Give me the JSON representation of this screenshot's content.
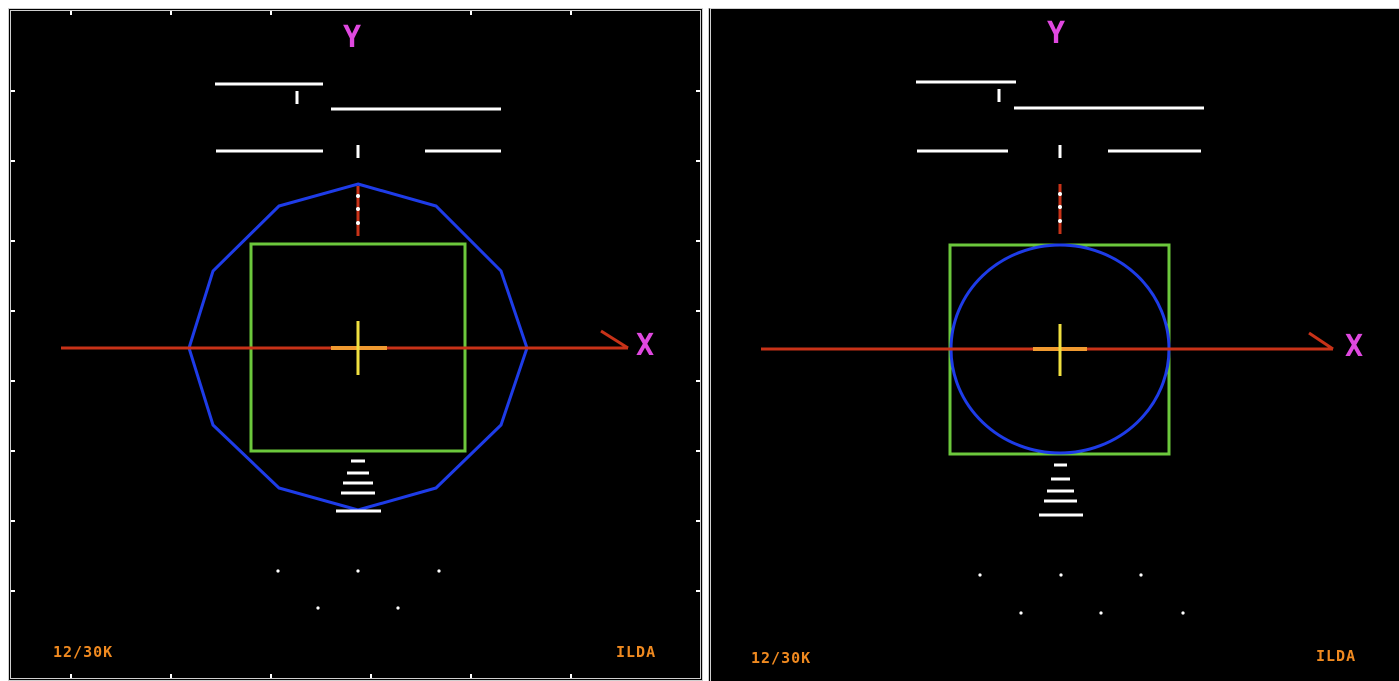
{
  "panels": [
    {
      "id": "left",
      "y_label": "Y",
      "x_label": "X",
      "corner_left": "12/30K",
      "corner_right": "ILDA",
      "outer_shape": "dodecagon",
      "inner_shape": "square"
    },
    {
      "id": "right",
      "y_label": "Y",
      "x_label": "X",
      "corner_left": "12/30K",
      "corner_right": "ILDA",
      "outer_shape": "square",
      "inner_shape": "circle"
    }
  ],
  "colors": {
    "background": "#000000",
    "x_axis": "#c83218",
    "y_axis_marker": "#c83218",
    "polygon": "#1e3ce8",
    "square": "#6cc83c",
    "center_cross_vertical": "#f0e040",
    "center_cross_horizontal": "#f09a30",
    "axis_letters": "#e048e0",
    "corner_text": "#f08a20",
    "white_bars": "#ffffff"
  }
}
